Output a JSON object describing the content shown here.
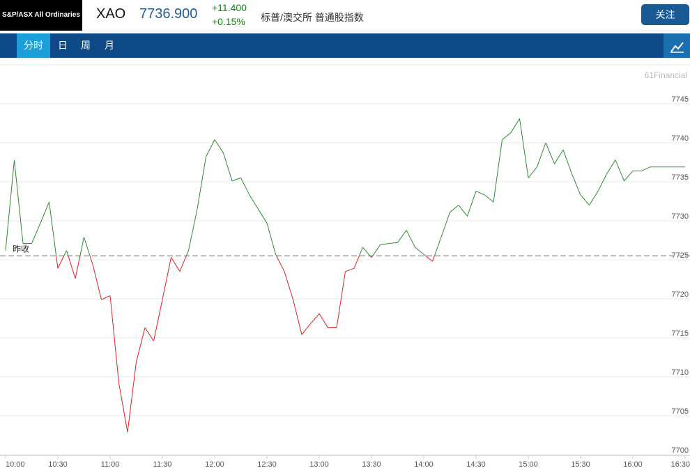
{
  "header": {
    "logo": "S&P/ASX All Ordinaries",
    "symbol": "XAO",
    "price": "7736.900",
    "change": "+11.400",
    "change_pct": "+0.15%",
    "name": "标普/澳交所 普通股指数",
    "button": "关注"
  },
  "tabs": [
    "分时",
    "日",
    "周",
    "月"
  ],
  "chart_data": {
    "type": "line",
    "watermark": "61Financial",
    "reference": {
      "label": "昨收",
      "value": 7725.5
    },
    "up_color": "#2e8b2e",
    "down_color": "#e01f1f",
    "x": [
      "10:00",
      "10:05",
      "10:10",
      "10:15",
      "10:20",
      "10:25",
      "10:30",
      "10:35",
      "10:40",
      "10:45",
      "10:50",
      "10:55",
      "11:00",
      "11:05",
      "11:10",
      "11:15",
      "11:20",
      "11:25",
      "11:30",
      "11:35",
      "11:40",
      "11:45",
      "11:50",
      "11:55",
      "12:00",
      "12:05",
      "12:10",
      "12:15",
      "12:20",
      "12:25",
      "12:30",
      "12:35",
      "12:40",
      "12:45",
      "12:50",
      "12:55",
      "13:00",
      "13:05",
      "13:10",
      "13:15",
      "13:20",
      "13:25",
      "13:30",
      "13:35",
      "13:40",
      "13:45",
      "13:50",
      "13:55",
      "14:00",
      "14:05",
      "14:10",
      "14:15",
      "14:20",
      "14:25",
      "14:30",
      "14:35",
      "14:40",
      "14:45",
      "14:50",
      "14:55",
      "15:00",
      "15:05",
      "15:10",
      "15:15",
      "15:20",
      "15:25",
      "15:30",
      "15:35",
      "15:40",
      "15:45",
      "15:50",
      "15:55",
      "16:00",
      "16:05",
      "16:10",
      "16:15",
      "16:20",
      "16:25",
      "16:30"
    ],
    "values": [
      7726.2,
      7737.8,
      7727.1,
      7727.1,
      7729.7,
      7732.4,
      7723.9,
      7726.2,
      7722.6,
      7727.9,
      7724.4,
      7719.9,
      7720.4,
      7709.2,
      7702.9,
      7711.9,
      7716.3,
      7714.6,
      7719.9,
      7725.3,
      7723.5,
      7726.2,
      7731.5,
      7738.2,
      7740.4,
      7738.7,
      7735.1,
      7735.5,
      7733.3,
      7731.5,
      7729.7,
      7725.7,
      7723.5,
      7719.9,
      7715.4,
      7716.8,
      7718.1,
      7716.3,
      7716.3,
      7723.5,
      7723.9,
      7726.6,
      7725.3,
      7726.9,
      7727.1,
      7727.2,
      7728.8,
      7726.6,
      7725.7,
      7724.8,
      7727.9,
      7731.1,
      7732.0,
      7730.6,
      7733.8,
      7733.3,
      7732.4,
      7740.4,
      7741.3,
      7743.1,
      7735.5,
      7736.9,
      7740.0,
      7737.3,
      7739.1,
      7736.0,
      7733.3,
      7732.0,
      7733.8,
      7736.0,
      7737.8,
      7735.1,
      7736.4,
      7736.4,
      7736.9,
      7736.9,
      7736.9,
      7736.9,
      7736.9
    ],
    "xlim": [
      "10:00",
      "16:30"
    ],
    "xticks": [
      "10:00",
      "10:30",
      "11:00",
      "11:30",
      "12:00",
      "12:30",
      "13:00",
      "13:30",
      "14:00",
      "14:30",
      "15:00",
      "15:30",
      "16:00",
      "16:30"
    ],
    "ylim": [
      7700,
      7750
    ],
    "yticks": [
      7700,
      7705,
      7710,
      7715,
      7720,
      7725,
      7730,
      7735,
      7740,
      7745
    ],
    "grid": true
  }
}
